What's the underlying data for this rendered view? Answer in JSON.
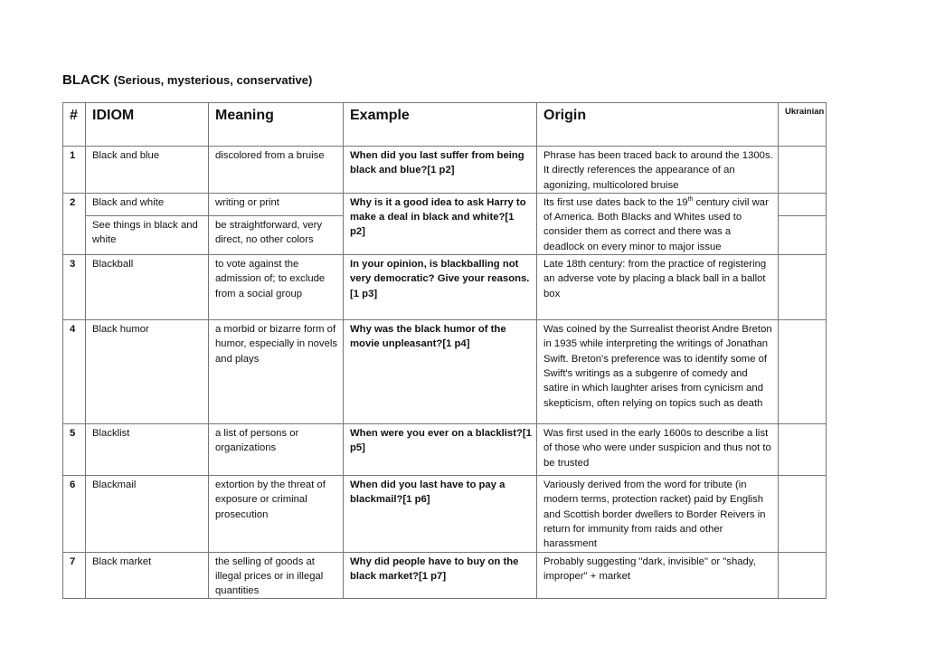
{
  "title": {
    "main": "BLACK",
    "sub": "(Serious, mysterious, conservative)"
  },
  "headers": [
    "#",
    "IDIOM",
    "Meaning",
    "Example",
    "Origin",
    "Ukrainian"
  ],
  "rows": [
    {
      "num": "1",
      "idiom": "Black and blue",
      "meaning": "discolored from a bruise",
      "example": "When did you last suffer from being black and blue?[1 p2]",
      "origin": "Phrase has been traced back to around the 1300s. It directly references the appearance of an agonizing, multicolored bruise"
    },
    {
      "num": "2",
      "idiom": "Black and white",
      "meaning": "writing or print",
      "idiom2": "See things in black and white",
      "meaning2": "be straightforward, very direct, no other colors",
      "example": "Why is it a good idea to ask Harry to make a deal in black and white?[1 p2]",
      "origin_pre": "Its first use dates back to the 19",
      "origin_sup": "th",
      "origin_post": " century civil war of America. Both Blacks and Whites used to consider them as correct and there was a deadlock on every minor to major issue"
    },
    {
      "num": "3",
      "idiom": "Blackball",
      "meaning": "to vote against the admission of; to exclude from a social group",
      "example": "In your opinion, is blackballing not very democratic? Give your reasons.[1 p3]",
      "origin": "Late 18th century: from the practice of registering an adverse vote by placing a black ball in a ballot box"
    },
    {
      "num": "4",
      "idiom": "Black humor",
      "meaning": "a morbid or bizarre form of humor, especially in novels and plays",
      "example": "Why was the black humor of the movie unpleasant?[1 p4]",
      "origin": "Was coined by the Surrealist theorist Andre Breton in 1935 while interpreting the writings of Jonathan Swift. Breton's preference was to identify some of Swift's writings as a subgenre of comedy and satire in which laughter arises from cynicism and skepticism, often relying on topics such as death"
    },
    {
      "num": "5",
      "idiom": "Blacklist",
      "meaning": "a list of persons or organizations",
      "example": "When were you ever on a blacklist?[1 p5]",
      "origin": "Was first used in the early 1600s to describe a list of those who were under suspicion and thus not to be trusted"
    },
    {
      "num": "6",
      "idiom": "Blackmail",
      "meaning": "extortion by the threat of exposure or criminal prosecution",
      "example": "When did you last have to pay a blackmail?[1 p6]",
      "origin": "Variously derived from the word for tribute (in modern terms, protection racket) paid by English and Scottish border dwellers to Border Reivers in return for immunity from raids and other harassment"
    },
    {
      "num": "7",
      "idiom": "Black market",
      "meaning": "the selling of goods at illegal prices or in illegal quantities",
      "example": "Why did people have to buy on the black market?[1 p7]",
      "origin": "Probably suggesting \"dark, invisible\" or \"shady, improper\" + market"
    }
  ]
}
